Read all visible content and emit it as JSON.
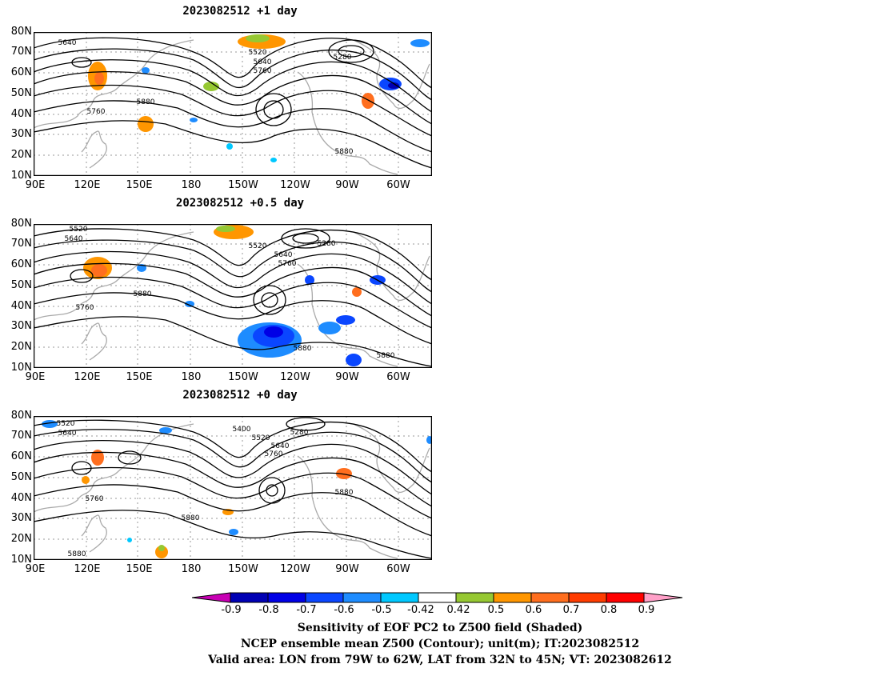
{
  "panels": [
    {
      "title": "2023082512  +1 day",
      "contour_labels": [
        "5640",
        "5520",
        "5640",
        "5760",
        "5280",
        "5760",
        "5880",
        "5880"
      ],
      "lat_labels": [
        "80N",
        "70N",
        "60N",
        "50N",
        "40N",
        "30N",
        "20N",
        "10N"
      ],
      "lon_labels": [
        "90E",
        "120E",
        "150E",
        "180",
        "150W",
        "120W",
        "90W",
        "60W"
      ]
    },
    {
      "title": "2023082512  +0.5 day",
      "contour_labels": [
        "5520",
        "5640",
        "5520",
        "5280",
        "5640",
        "5760",
        "5880",
        "5760",
        "5880",
        "5880"
      ],
      "lat_labels": [
        "80N",
        "70N",
        "60N",
        "50N",
        "40N",
        "30N",
        "20N",
        "10N"
      ],
      "lon_labels": [
        "90E",
        "120E",
        "150E",
        "180",
        "150W",
        "120W",
        "90W",
        "60W"
      ]
    },
    {
      "title": "2023082512  +0 day",
      "contour_labels": [
        "5520",
        "5640",
        "5400",
        "5280",
        "5520",
        "5640",
        "5760",
        "5760",
        "5880",
        "5880",
        "5880"
      ],
      "lat_labels": [
        "80N",
        "70N",
        "60N",
        "50N",
        "40N",
        "30N",
        "20N",
        "10N"
      ],
      "lon_labels": [
        "90E",
        "120E",
        "150E",
        "180",
        "150W",
        "120W",
        "90W",
        "60W"
      ]
    }
  ],
  "colorbar": {
    "labels": [
      "-0.9",
      "-0.8",
      "-0.7",
      "-0.6",
      "-0.5",
      "-0.42",
      "0.42",
      "0.5",
      "0.6",
      "0.7",
      "0.8",
      "0.9"
    ],
    "colors": [
      "#0000b4",
      "#0000e6",
      "#0a46ff",
      "#1e8cff",
      "#00c8ff",
      "#ffffff",
      "#96c832",
      "#ff9600",
      "#ff6e1e",
      "#ff3c00",
      "#ff0000"
    ],
    "low_arrow_color": "#c800b4",
    "high_arrow_color": "#ffa0c8"
  },
  "footer": {
    "line1": "Sensitivity of EOF PC2 to Z500 field (Shaded)",
    "line2": "NCEP ensemble mean Z500 (Contour); unit(m); IT:2023082512",
    "line3": "Valid area: LON from 79W to 62W, LAT from 32N to 45N; VT: 2023082612"
  }
}
